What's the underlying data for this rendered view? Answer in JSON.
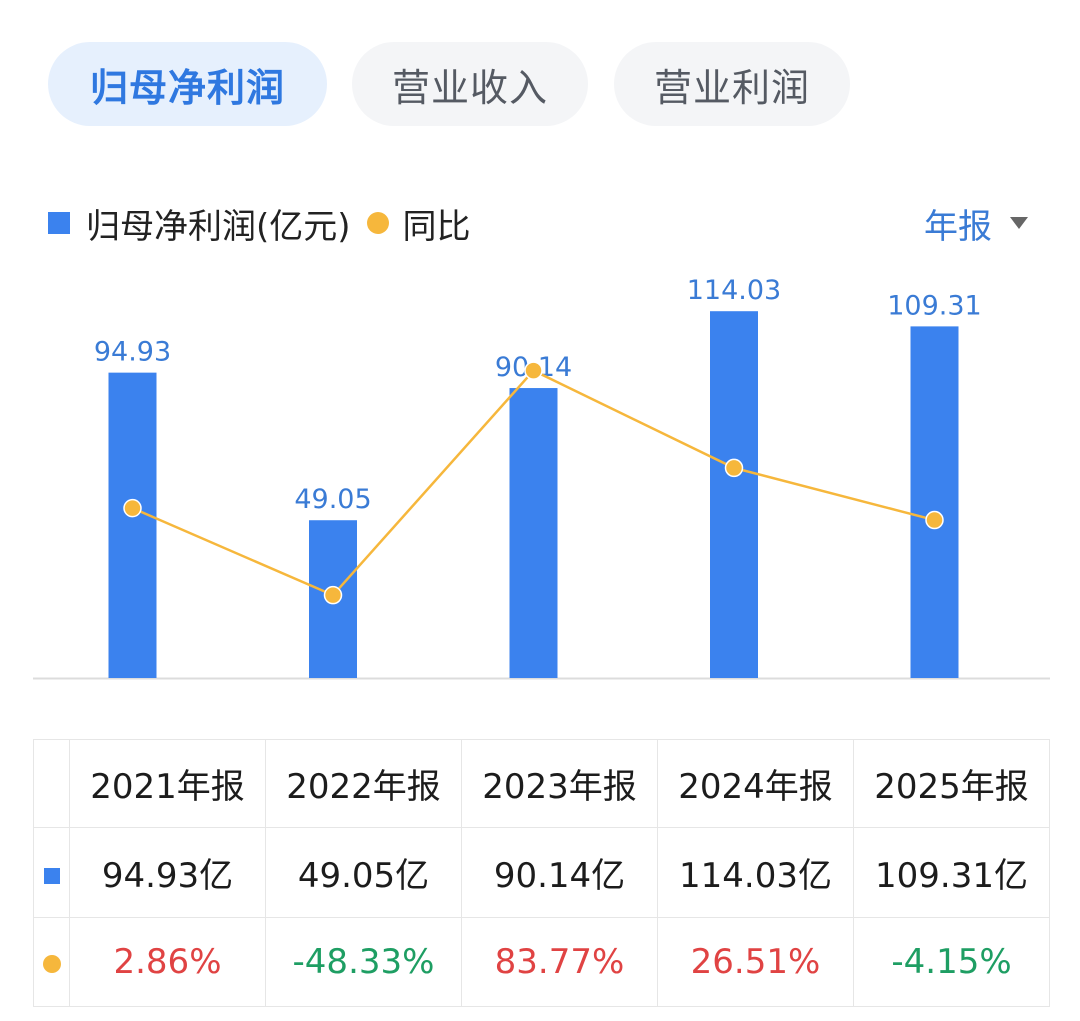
{
  "tabs": [
    {
      "label": "归母净利润",
      "active": true
    },
    {
      "label": "营业收入",
      "active": false
    },
    {
      "label": "营业利润",
      "active": false
    }
  ],
  "legend": {
    "bar_label": "归母净利润(亿元)",
    "line_label": "同比"
  },
  "period_selector": {
    "label": "年报"
  },
  "colors": {
    "bar": "#3b82ee",
    "line": "#f6b73c",
    "positive": "#e04343",
    "negative": "#1e9e63",
    "bar_label": "#3a7bd5"
  },
  "chart_data": {
    "type": "bar",
    "categories": [
      "2021年报",
      "2022年报",
      "2023年报",
      "2024年报",
      "2025年报"
    ],
    "series": [
      {
        "name": "归母净利润(亿元)",
        "type": "bar",
        "values": [
          94.93,
          49.05,
          90.14,
          114.03,
          109.31
        ],
        "labels": [
          "94.93",
          "49.05",
          "90.14",
          "114.03",
          "109.31"
        ]
      },
      {
        "name": "同比",
        "type": "line",
        "values": [
          2.86,
          -48.33,
          83.77,
          26.51,
          -4.15
        ]
      }
    ],
    "ylim": [
      0,
      120
    ],
    "yoy_range": [
      -60,
      90
    ]
  },
  "table": {
    "headers": [
      "2021年报",
      "2022年报",
      "2023年报",
      "2024年报",
      "2025年报"
    ],
    "values": [
      "94.93亿",
      "49.05亿",
      "90.14亿",
      "114.03亿",
      "109.31亿"
    ],
    "yoy": [
      "2.86%",
      "-48.33%",
      "83.77%",
      "26.51%",
      "-4.15%"
    ]
  }
}
